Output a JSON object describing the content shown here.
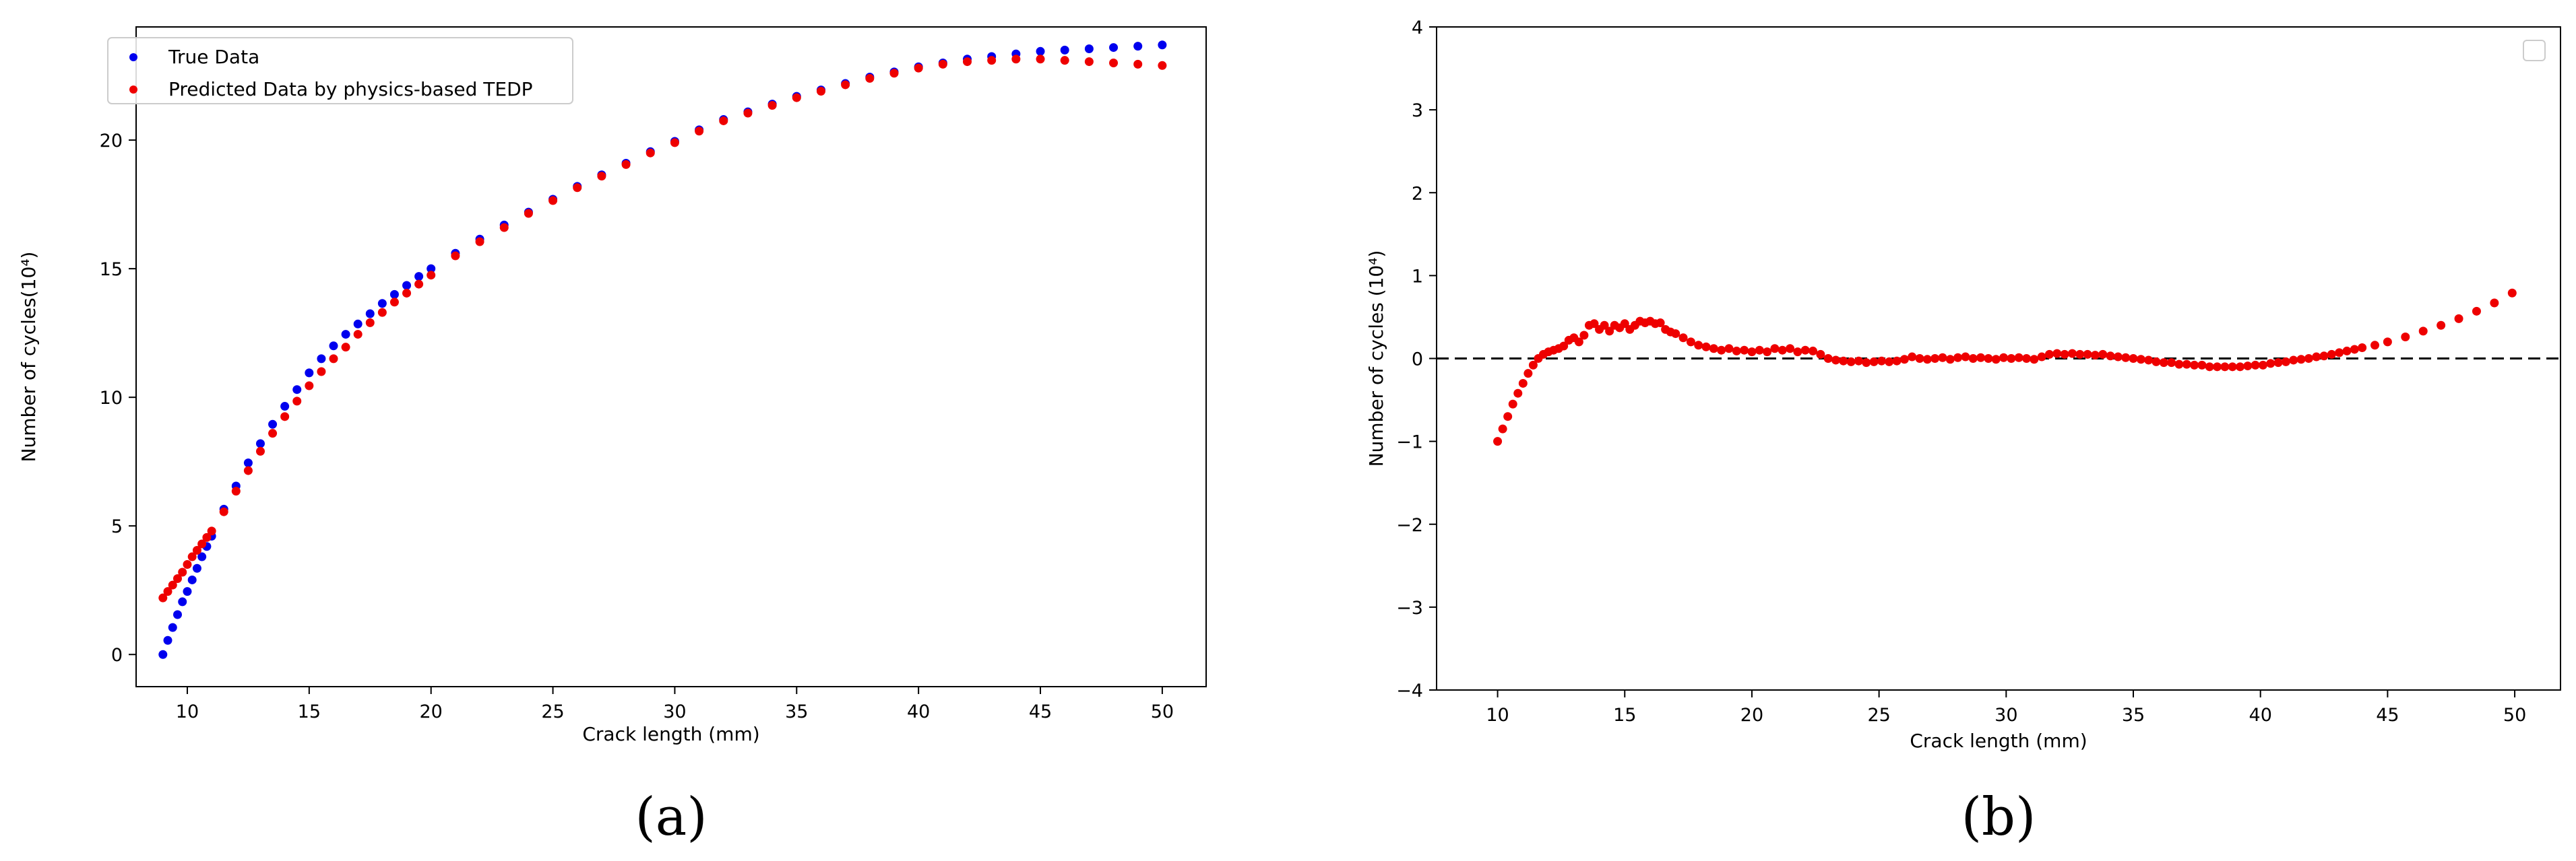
{
  "chart_data": [
    {
      "type": "scatter",
      "panel_label": "(a)",
      "xlabel": "Crack length (mm)",
      "ylabel": "Number of cycles(10⁴)",
      "xlim": [
        7.9,
        51.8
      ],
      "ylim": [
        -1.25,
        24.4
      ],
      "xticks": [
        10,
        15,
        20,
        25,
        30,
        35,
        40,
        45,
        50
      ],
      "yticks": [
        0,
        5,
        10,
        15,
        20
      ],
      "grid": false,
      "legend_placement": "top-left",
      "series": [
        {
          "name": "True Data",
          "color": "#0000ee",
          "x": [
            9.0,
            9.2,
            9.4,
            9.6,
            9.8,
            10.0,
            10.2,
            10.4,
            10.6,
            10.8,
            11.0,
            11.5,
            12.0,
            12.5,
            13.0,
            13.5,
            14.0,
            14.5,
            15.0,
            15.5,
            16.0,
            16.5,
            17.0,
            17.5,
            18.0,
            18.5,
            19.0,
            19.5,
            20.0,
            21.0,
            22.0,
            23.0,
            24.0,
            25.0,
            26.0,
            27.0,
            28.0,
            29.0,
            30.0,
            31.0,
            32.0,
            33.0,
            34.0,
            35.0,
            36.0,
            37.0,
            38.0,
            39.0,
            40.0,
            41.0,
            42.0,
            43.0,
            44.0,
            45.0,
            46.0,
            47.0,
            48.0,
            49.0,
            50.0
          ],
          "y": [
            0.0,
            0.55,
            1.05,
            1.55,
            2.05,
            2.45,
            2.9,
            3.35,
            3.8,
            4.2,
            4.6,
            5.65,
            6.55,
            7.45,
            8.2,
            8.95,
            9.65,
            10.3,
            10.95,
            11.5,
            12.0,
            12.45,
            12.85,
            13.25,
            13.65,
            14.0,
            14.35,
            14.7,
            15.0,
            15.6,
            16.15,
            16.7,
            17.2,
            17.7,
            18.2,
            18.65,
            19.1,
            19.55,
            19.95,
            20.4,
            20.8,
            21.1,
            21.4,
            21.7,
            21.95,
            22.2,
            22.45,
            22.65,
            22.85,
            23.0,
            23.15,
            23.25,
            23.35,
            23.45,
            23.5,
            23.55,
            23.6,
            23.65,
            23.7
          ]
        },
        {
          "name": "Predicted  Data by physics-based TEDP",
          "color": "#ee0000",
          "x": [
            9.0,
            9.2,
            9.4,
            9.6,
            9.8,
            10.0,
            10.2,
            10.4,
            10.6,
            10.8,
            11.0,
            11.5,
            12.0,
            12.5,
            13.0,
            13.5,
            14.0,
            14.5,
            15.0,
            15.5,
            16.0,
            16.5,
            17.0,
            17.5,
            18.0,
            18.5,
            19.0,
            19.5,
            20.0,
            21.0,
            22.0,
            23.0,
            24.0,
            25.0,
            26.0,
            27.0,
            28.0,
            29.0,
            30.0,
            31.0,
            32.0,
            33.0,
            34.0,
            35.0,
            36.0,
            37.0,
            38.0,
            39.0,
            40.0,
            41.0,
            42.0,
            43.0,
            44.0,
            45.0,
            46.0,
            47.0,
            48.0,
            49.0,
            50.0
          ],
          "y": [
            2.2,
            2.45,
            2.7,
            2.95,
            3.2,
            3.5,
            3.8,
            4.05,
            4.3,
            4.55,
            4.8,
            5.55,
            6.35,
            7.15,
            7.9,
            8.6,
            9.25,
            9.85,
            10.45,
            11.0,
            11.5,
            11.95,
            12.45,
            12.9,
            13.3,
            13.7,
            14.05,
            14.4,
            14.75,
            15.5,
            16.05,
            16.6,
            17.15,
            17.65,
            18.15,
            18.6,
            19.05,
            19.5,
            19.9,
            20.35,
            20.75,
            21.05,
            21.35,
            21.65,
            21.9,
            22.15,
            22.4,
            22.6,
            22.8,
            22.95,
            23.05,
            23.1,
            23.15,
            23.15,
            23.1,
            23.05,
            23.0,
            22.95,
            22.9
          ]
        }
      ]
    },
    {
      "type": "scatter",
      "panel_label": "(b)",
      "xlabel": "Crack length (mm)",
      "ylabel": "Number of cycles (10⁴)",
      "xlim": [
        7.6,
        51.8
      ],
      "ylim": [
        -4,
        4
      ],
      "xticks": [
        10,
        15,
        20,
        25,
        30,
        35,
        40,
        45,
        50
      ],
      "yticks": [
        -4,
        -3,
        -2,
        -1,
        0,
        1,
        2,
        3,
        4
      ],
      "grid": false,
      "reference_line": {
        "y": 0,
        "style": "dashed",
        "color": "#000000"
      },
      "legend_placement": "top-right",
      "series": [
        {
          "color": "#ee0000",
          "x": [
            10.0,
            10.2,
            10.4,
            10.6,
            10.8,
            11.0,
            11.2,
            11.4,
            11.6,
            11.8,
            12.0,
            12.2,
            12.4,
            12.6,
            12.8,
            13.0,
            13.2,
            13.4,
            13.6,
            13.8,
            14.0,
            14.2,
            14.4,
            14.6,
            14.8,
            15.0,
            15.2,
            15.4,
            15.6,
            15.8,
            16.0,
            16.2,
            16.4,
            16.6,
            16.8,
            17.0,
            17.3,
            17.6,
            17.9,
            18.2,
            18.5,
            18.8,
            19.1,
            19.4,
            19.7,
            20.0,
            20.3,
            20.6,
            20.9,
            21.2,
            21.5,
            21.8,
            22.1,
            22.4,
            22.7,
            23.0,
            23.3,
            23.6,
            23.9,
            24.2,
            24.5,
            24.8,
            25.1,
            25.4,
            25.7,
            26.0,
            26.3,
            26.6,
            26.9,
            27.2,
            27.5,
            27.8,
            28.1,
            28.4,
            28.7,
            29.0,
            29.3,
            29.6,
            29.9,
            30.2,
            30.5,
            30.8,
            31.1,
            31.4,
            31.7,
            32.0,
            32.3,
            32.6,
            32.9,
            33.2,
            33.5,
            33.8,
            34.1,
            34.4,
            34.7,
            35.0,
            35.3,
            35.6,
            35.9,
            36.2,
            36.5,
            36.8,
            37.1,
            37.4,
            37.7,
            38.0,
            38.3,
            38.6,
            38.9,
            39.2,
            39.5,
            39.8,
            40.1,
            40.4,
            40.7,
            41.0,
            41.3,
            41.6,
            41.9,
            42.2,
            42.5,
            42.8,
            43.1,
            43.4,
            43.7,
            44.0,
            44.5,
            45.0,
            45.7,
            46.4,
            47.1,
            47.8,
            48.5,
            49.2,
            49.9
          ],
          "y": [
            -1.0,
            -0.85,
            -0.7,
            -0.55,
            -0.42,
            -0.3,
            -0.18,
            -0.08,
            0.0,
            0.05,
            0.08,
            0.1,
            0.12,
            0.15,
            0.22,
            0.25,
            0.2,
            0.28,
            0.4,
            0.42,
            0.35,
            0.4,
            0.33,
            0.4,
            0.37,
            0.42,
            0.35,
            0.4,
            0.45,
            0.43,
            0.45,
            0.42,
            0.43,
            0.35,
            0.32,
            0.3,
            0.25,
            0.2,
            0.16,
            0.14,
            0.12,
            0.1,
            0.12,
            0.09,
            0.1,
            0.08,
            0.1,
            0.08,
            0.12,
            0.1,
            0.12,
            0.08,
            0.1,
            0.09,
            0.05,
            0.0,
            -0.02,
            -0.03,
            -0.04,
            -0.03,
            -0.05,
            -0.04,
            -0.03,
            -0.04,
            -0.03,
            -0.01,
            0.02,
            0.0,
            -0.01,
            0.0,
            0.01,
            -0.01,
            0.01,
            0.02,
            0.0,
            0.01,
            0.0,
            -0.01,
            0.01,
            0.0,
            0.01,
            0.0,
            -0.01,
            0.02,
            0.05,
            0.06,
            0.05,
            0.06,
            0.05,
            0.05,
            0.04,
            0.05,
            0.03,
            0.02,
            0.01,
            0.0,
            -0.01,
            -0.02,
            -0.04,
            -0.05,
            -0.05,
            -0.07,
            -0.07,
            -0.08,
            -0.08,
            -0.1,
            -0.1,
            -0.1,
            -0.1,
            -0.1,
            -0.09,
            -0.08,
            -0.08,
            -0.06,
            -0.05,
            -0.04,
            -0.02,
            -0.01,
            0.0,
            0.02,
            0.03,
            0.05,
            0.07,
            0.09,
            0.11,
            0.13,
            0.16,
            0.2,
            0.26,
            0.33,
            0.4,
            0.48,
            0.57,
            0.67,
            0.79
          ]
        }
      ]
    }
  ]
}
